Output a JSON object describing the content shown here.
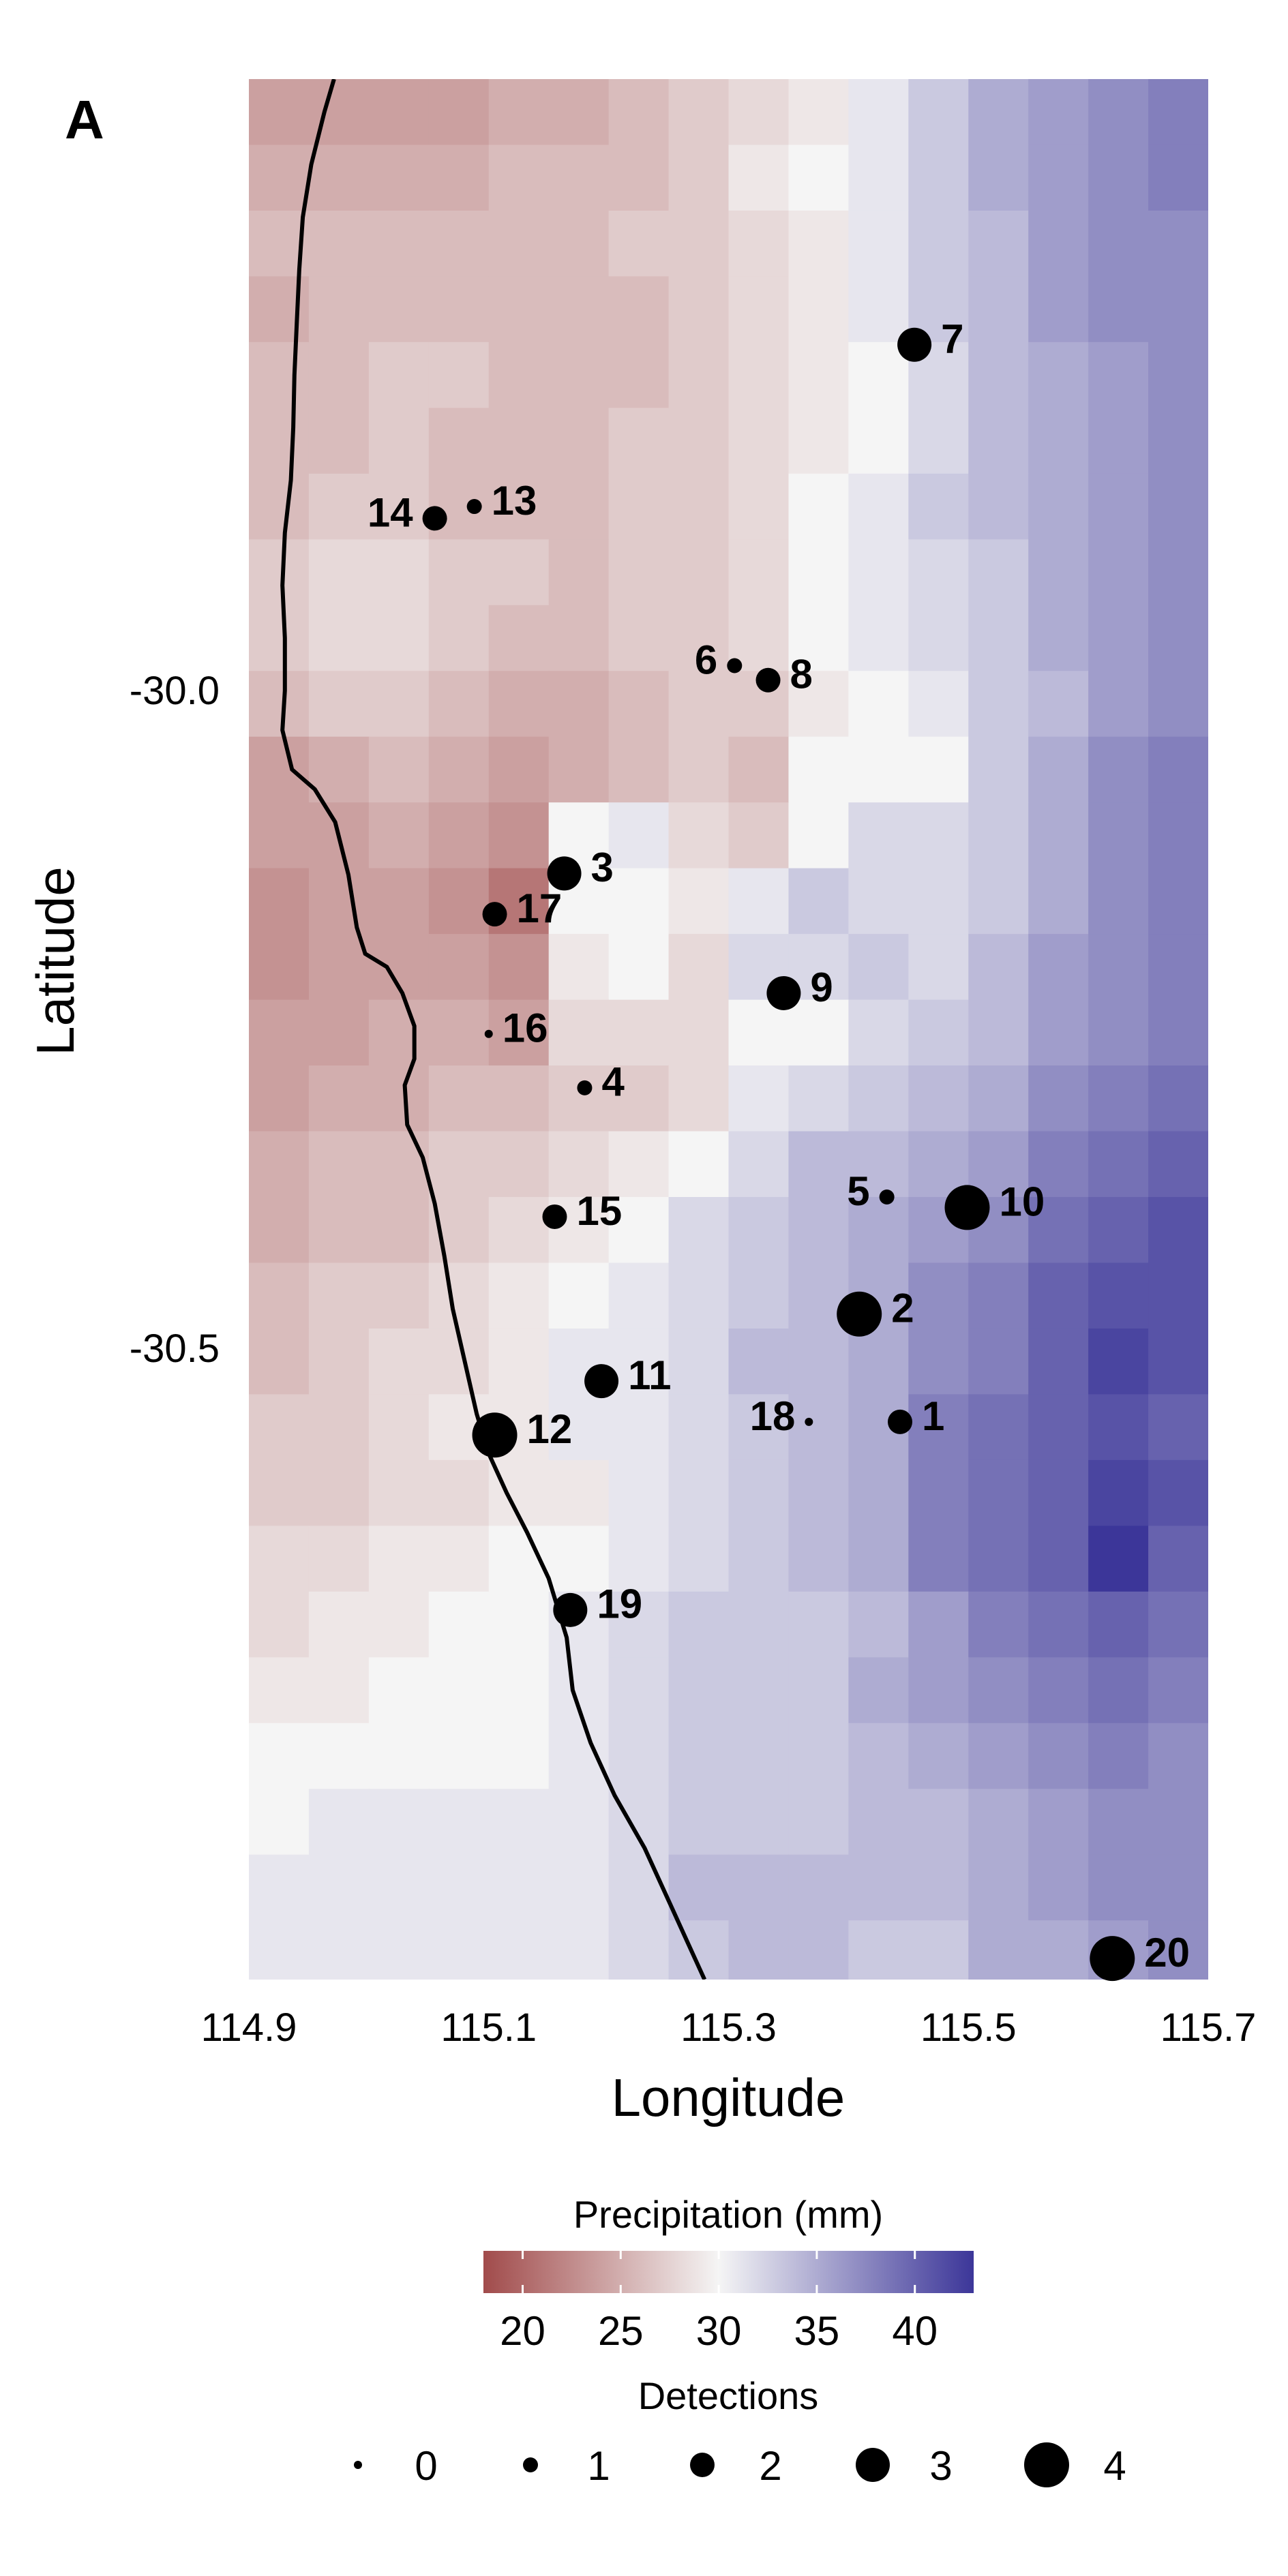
{
  "chart_data": {
    "type": "scatter",
    "panel_label": "A",
    "xlabel": "Longitude",
    "ylabel": "Latitude",
    "xlim": [
      114.9,
      115.7
    ],
    "ylim": [
      -30.98,
      -29.535
    ],
    "x_ticks": [
      "114.9",
      "115.1",
      "115.3",
      "115.5",
      "115.7"
    ],
    "x_tick_values": [
      114.9,
      115.1,
      115.3,
      115.5,
      115.7
    ],
    "y_ticks": [
      "-30.0",
      "-30.5"
    ],
    "y_tick_values": [
      -30.0,
      -30.5
    ],
    "points": [
      {
        "label": "1",
        "lon": 115.443,
        "lat": -30.556,
        "detections": 2
      },
      {
        "label": "2",
        "lon": 115.409,
        "lat": -30.474,
        "detections": 4
      },
      {
        "label": "3",
        "lon": 115.163,
        "lat": -30.139,
        "detections": 3
      },
      {
        "label": "4",
        "lon": 115.18,
        "lat": -30.302,
        "detections": 1
      },
      {
        "label": "5",
        "lon": 115.432,
        "lat": -30.385,
        "detections": 1
      },
      {
        "label": "6",
        "lon": 115.305,
        "lat": -29.981,
        "detections": 1
      },
      {
        "label": "7",
        "lon": 115.455,
        "lat": -29.737,
        "detections": 3
      },
      {
        "label": "8",
        "lon": 115.333,
        "lat": -29.992,
        "detections": 2
      },
      {
        "label": "9",
        "lon": 115.346,
        "lat": -30.23,
        "detections": 3
      },
      {
        "label": "10",
        "lon": 115.499,
        "lat": -30.393,
        "detections": 4
      },
      {
        "label": "11",
        "lon": 115.194,
        "lat": -30.525,
        "detections": 3
      },
      {
        "label": "12",
        "lon": 115.105,
        "lat": -30.566,
        "detections": 4
      },
      {
        "label": "13",
        "lon": 115.088,
        "lat": -29.86,
        "detections": 1
      },
      {
        "label": "14",
        "lon": 115.055,
        "lat": -29.869,
        "detections": 2
      },
      {
        "label": "15",
        "lon": 115.155,
        "lat": -30.4,
        "detections": 2
      },
      {
        "label": "16",
        "lon": 115.1,
        "lat": -30.261,
        "detections": 0
      },
      {
        "label": "17",
        "lon": 115.105,
        "lat": -30.17,
        "detections": 2
      },
      {
        "label": "18",
        "lon": 115.367,
        "lat": -30.556,
        "detections": 0
      },
      {
        "label": "19",
        "lon": 115.168,
        "lat": -30.699,
        "detections": 3
      },
      {
        "label": "20",
        "lon": 115.62,
        "lat": -30.964,
        "detections": 4
      }
    ],
    "coastline": [
      [
        114.971,
        -29.535
      ],
      [
        114.963,
        -29.56
      ],
      [
        114.952,
        -29.6
      ],
      [
        114.945,
        -29.64
      ],
      [
        114.942,
        -29.68
      ],
      [
        114.94,
        -29.72
      ],
      [
        114.938,
        -29.76
      ],
      [
        114.937,
        -29.8
      ],
      [
        114.935,
        -29.84
      ],
      [
        114.93,
        -29.88
      ],
      [
        114.928,
        -29.92
      ],
      [
        114.93,
        -29.96
      ],
      [
        114.93,
        -30.0
      ],
      [
        114.928,
        -30.03
      ],
      [
        114.936,
        -30.06
      ],
      [
        114.955,
        -30.075
      ],
      [
        114.972,
        -30.1
      ],
      [
        114.983,
        -30.14
      ],
      [
        114.99,
        -30.18
      ],
      [
        114.997,
        -30.2
      ],
      [
        115.015,
        -30.21
      ],
      [
        115.028,
        -30.23
      ],
      [
        115.038,
        -30.255
      ],
      [
        115.038,
        -30.28
      ],
      [
        115.03,
        -30.3
      ],
      [
        115.032,
        -30.33
      ],
      [
        115.045,
        -30.355
      ],
      [
        115.055,
        -30.39
      ],
      [
        115.063,
        -30.43
      ],
      [
        115.07,
        -30.47
      ],
      [
        115.08,
        -30.51
      ],
      [
        115.09,
        -30.55
      ],
      [
        115.1,
        -30.58
      ],
      [
        115.115,
        -30.61
      ],
      [
        115.132,
        -30.64
      ],
      [
        115.15,
        -30.675
      ],
      [
        115.165,
        -30.72
      ],
      [
        115.17,
        -30.76
      ],
      [
        115.185,
        -30.8
      ],
      [
        115.205,
        -30.84
      ],
      [
        115.23,
        -30.88
      ],
      [
        115.25,
        -30.92
      ],
      [
        115.265,
        -30.95
      ],
      [
        115.28,
        -30.98
      ]
    ],
    "raster": {
      "x0": 114.9,
      "dx": 0.05,
      "y_top": -29.535,
      "dy": 0.05,
      "rows": [
        [
          24,
          24,
          24,
          24,
          25,
          25,
          26,
          27,
          28,
          29,
          31,
          33,
          35,
          36,
          37,
          38
        ],
        [
          25,
          25,
          25,
          25,
          26,
          26,
          26,
          27,
          29,
          30,
          31,
          33,
          35,
          36,
          37,
          38
        ],
        [
          26,
          26,
          26,
          26,
          26,
          26,
          27,
          27,
          28,
          29,
          31,
          33,
          34,
          36,
          37,
          37
        ],
        [
          25,
          26,
          26,
          26,
          26,
          26,
          26,
          27,
          28,
          29,
          31,
          33,
          34,
          36,
          37,
          37
        ],
        [
          26,
          26,
          27,
          27,
          26,
          26,
          26,
          27,
          28,
          29,
          30,
          32,
          34,
          35,
          36,
          37
        ],
        [
          26,
          26,
          27,
          26,
          26,
          26,
          27,
          27,
          28,
          29,
          30,
          32,
          34,
          35,
          36,
          37
        ],
        [
          26,
          27,
          27,
          26,
          26,
          26,
          27,
          27,
          28,
          30,
          31,
          33,
          34,
          35,
          36,
          37
        ],
        [
          27,
          28,
          28,
          27,
          27,
          26,
          27,
          27,
          28,
          30,
          31,
          32,
          33,
          35,
          36,
          37
        ],
        [
          27,
          28,
          28,
          27,
          26,
          26,
          27,
          27,
          28,
          30,
          31,
          32,
          33,
          35,
          36,
          37
        ],
        [
          26,
          27,
          27,
          26,
          25,
          25,
          26,
          27,
          27,
          29,
          30,
          31,
          33,
          34,
          36,
          37
        ],
        [
          24,
          25,
          26,
          25,
          24,
          25,
          26,
          27,
          26,
          30,
          30,
          30,
          33,
          35,
          37,
          38
        ],
        [
          24,
          24,
          25,
          24,
          23,
          30,
          31,
          28,
          27,
          30,
          32,
          32,
          33,
          35,
          37,
          38
        ],
        [
          23,
          24,
          24,
          23,
          21,
          30,
          30,
          29,
          31,
          33,
          32,
          32,
          33,
          35,
          37,
          38
        ],
        [
          23,
          24,
          24,
          24,
          23,
          29,
          30,
          28,
          32,
          32,
          33,
          32,
          34,
          36,
          37,
          38
        ],
        [
          24,
          24,
          25,
          25,
          24,
          28,
          28,
          28,
          30,
          30,
          32,
          33,
          34,
          36,
          37,
          38
        ],
        [
          24,
          25,
          25,
          26,
          26,
          27,
          27,
          28,
          31,
          32,
          33,
          34,
          35,
          37,
          38,
          39
        ],
        [
          25,
          26,
          26,
          27,
          27,
          28,
          29,
          30,
          32,
          34,
          34,
          35,
          36,
          38,
          39,
          40
        ],
        [
          25,
          26,
          26,
          27,
          28,
          29,
          30,
          32,
          33,
          34,
          35,
          36,
          37,
          39,
          40,
          41
        ],
        [
          26,
          27,
          27,
          28,
          29,
          30,
          31,
          32,
          33,
          34,
          35,
          37,
          38,
          40,
          41,
          41
        ],
        [
          26,
          27,
          28,
          28,
          29,
          31,
          31,
          32,
          34,
          34,
          35,
          37,
          38,
          40,
          42,
          41
        ],
        [
          27,
          27,
          28,
          29,
          29,
          31,
          31,
          32,
          33,
          34,
          35,
          38,
          39,
          40,
          41,
          40
        ],
        [
          27,
          27,
          28,
          28,
          29,
          29,
          31,
          32,
          33,
          34,
          35,
          38,
          39,
          40,
          42,
          41
        ],
        [
          28,
          28,
          29,
          29,
          30,
          30,
          31,
          32,
          33,
          34,
          35,
          38,
          39,
          40,
          43,
          40
        ],
        [
          28,
          29,
          29,
          30,
          30,
          31,
          32,
          33,
          33,
          33,
          34,
          36,
          38,
          39,
          40,
          39
        ],
        [
          29,
          29,
          30,
          30,
          30,
          31,
          32,
          33,
          33,
          33,
          35,
          36,
          37,
          38,
          39,
          38
        ],
        [
          30,
          30,
          30,
          30,
          30,
          31,
          32,
          33,
          33,
          33,
          34,
          35,
          36,
          37,
          38,
          37
        ],
        [
          30,
          31,
          31,
          31,
          31,
          31,
          32,
          33,
          33,
          33,
          34,
          34,
          35,
          36,
          37,
          37
        ],
        [
          31,
          31,
          31,
          31,
          31,
          31,
          32,
          34,
          34,
          34,
          34,
          34,
          35,
          36,
          37,
          37
        ],
        [
          31,
          31,
          31,
          31,
          31,
          31,
          32,
          33,
          34,
          34,
          33,
          33,
          35,
          35,
          36,
          37
        ],
        [
          32,
          32,
          32,
          32,
          32,
          32,
          32,
          33,
          34,
          34,
          34,
          35,
          35,
          36,
          37,
          38
        ],
        [
          32,
          32,
          32,
          32,
          32,
          32,
          32,
          33,
          34,
          34,
          34,
          35,
          35,
          36,
          37,
          38
        ]
      ]
    },
    "legend": {
      "color_title": "Precipitation (mm)",
      "color_range": [
        18,
        43
      ],
      "color_ticks": [
        "20",
        "25",
        "30",
        "35",
        "40"
      ],
      "color_tick_values": [
        20,
        25,
        30,
        35,
        40
      ],
      "colors": {
        "low": "#a14b4b",
        "mid": "#f5f5f5",
        "high": "#3c3699"
      },
      "size_title": "Detections",
      "size_labels": [
        "0",
        "1",
        "2",
        "3",
        "4"
      ],
      "size_values": [
        0,
        1,
        2,
        3,
        4
      ]
    }
  }
}
